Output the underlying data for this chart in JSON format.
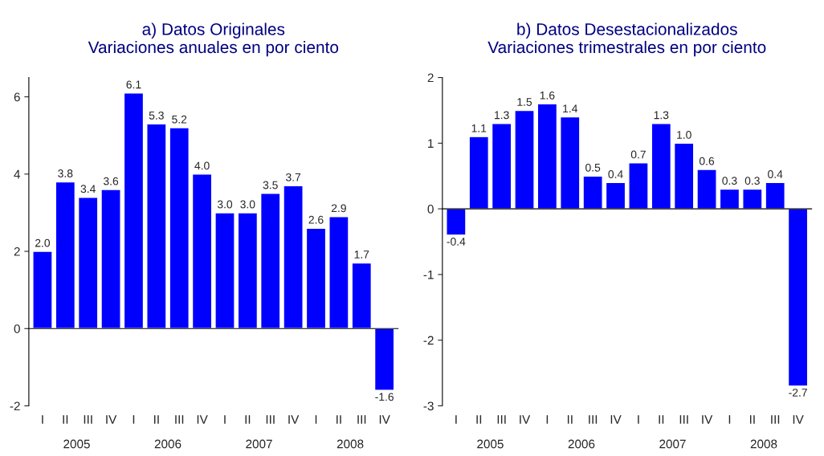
{
  "chart_data": [
    {
      "type": "bar",
      "title": "a) Datos Originales\nVariaciones anuales en por ciento",
      "categories": [
        "I",
        "II",
        "III",
        "IV",
        "I",
        "II",
        "III",
        "IV",
        "I",
        "II",
        "III",
        "IV",
        "I",
        "II",
        "III",
        "IV"
      ],
      "values": [
        2,
        3.8,
        3.4,
        3.6,
        6.1,
        5.3,
        5.2,
        4,
        3,
        3,
        3.5,
        3.7,
        2.6,
        2.9,
        1.7,
        -1.6
      ],
      "value_labels": [
        "2.0",
        "3.8",
        "3.4",
        "3.6",
        "6.1",
        "5.3",
        "5.2",
        "4.0",
        "3.0",
        "3.0",
        "3.5",
        "3.7",
        "2.6",
        "2.9",
        "1.7",
        "-1.6"
      ],
      "color": "#0000ff",
      "ylim": [
        -2,
        6.5
      ],
      "yticks": [
        -2,
        0,
        2,
        4,
        6
      ],
      "annotations": [
        "2005",
        "2006",
        "2007",
        "2008"
      ]
    },
    {
      "type": "bar",
      "title": "b) Datos Desestacionalizados\nVariaciones trimestrales en por ciento",
      "categories": [
        "I",
        "II",
        "III",
        "IV",
        "I",
        "II",
        "III",
        "IV",
        "I",
        "II",
        "III",
        "IV",
        "I",
        "II",
        "III",
        "IV"
      ],
      "values": [
        -0.4,
        1.1,
        1.3,
        1.5,
        1.6,
        1.4,
        0.5,
        0.4,
        0.7,
        1.3,
        1,
        0.6,
        0.3,
        0.3,
        0.4,
        -2.7
      ],
      "value_labels": [
        "-0.4",
        "1.1",
        "1.3",
        "1.5",
        "1.6",
        "1.4",
        "0.5",
        "0.4",
        "0.7",
        "1.3",
        "1.0",
        "0.6",
        "0.3",
        "0.3",
        "0.4",
        "-2.7"
      ],
      "color": "#0000ff",
      "ylim": [
        -3,
        2
      ],
      "yticks": [
        -3,
        -2,
        -1,
        0,
        1,
        2
      ],
      "annotations": [
        "2005",
        "2006",
        "2007",
        "2008"
      ]
    }
  ]
}
